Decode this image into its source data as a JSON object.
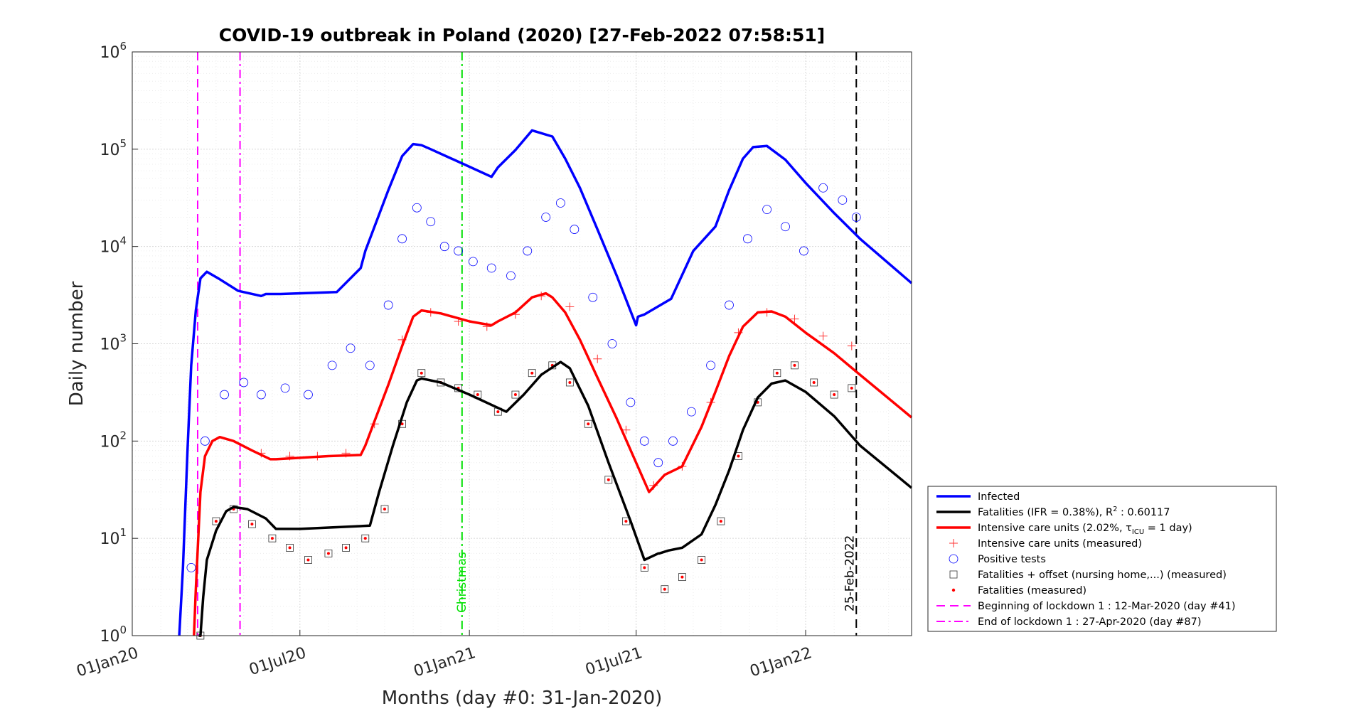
{
  "chart_data": {
    "type": "line",
    "title": "COVID-19 outbreak in Poland (2020) [27-Feb-2022 07:58:51]",
    "xlabel": "Months (day #0: 31-Jan-2020)",
    "ylabel": "Daily number",
    "y_scale": "log",
    "ylim": [
      1,
      1000000
    ],
    "xlim": [
      "2020-01-01",
      "2022-04-26"
    ],
    "grid": true,
    "legend_position": "right",
    "x_ticks": [
      "01Jan20",
      "01Jul20",
      "01Jan21",
      "01Jul21",
      "01Jan22"
    ],
    "y_ticks": [
      {
        "base": "10",
        "exp": "0"
      },
      {
        "base": "10",
        "exp": "1"
      },
      {
        "base": "10",
        "exp": "2"
      },
      {
        "base": "10",
        "exp": "3"
      },
      {
        "base": "10",
        "exp": "4"
      },
      {
        "base": "10",
        "exp": "5"
      },
      {
        "base": "10",
        "exp": "6"
      }
    ],
    "vlines": [
      {
        "x": "2020-03-12",
        "color": "#ff00ff",
        "dash": "12,7",
        "label": ""
      },
      {
        "x": "2020-04-27",
        "color": "#ff00ff",
        "dash": "12,5,3,5",
        "label": ""
      },
      {
        "x": "2020-12-24",
        "color": "#00e000",
        "dash": "12,5,3,5",
        "label": "Christmas"
      },
      {
        "x": "2022-02-25",
        "color": "#000000",
        "dash": "12,7",
        "label": "25-Feb-2022"
      }
    ],
    "series": [
      {
        "name": "Infected",
        "kind": "line",
        "color": "#0000ff",
        "width": 3.5,
        "x": [
          "2020-02-21",
          "2020-02-25",
          "2020-03-01",
          "2020-03-05",
          "2020-03-10",
          "2020-03-15",
          "2020-03-22",
          "2020-04-05",
          "2020-04-25",
          "2020-05-20",
          "2020-05-25",
          "2020-06-10",
          "2020-08-10",
          "2020-09-05",
          "2020-09-10",
          "2020-09-20",
          "2020-10-05",
          "2020-10-20",
          "2020-11-01",
          "2020-11-10",
          "2020-11-20",
          "2020-12-10",
          "2021-01-01",
          "2021-01-25",
          "2021-02-01",
          "2021-02-20",
          "2021-03-10",
          "2021-04-01",
          "2021-04-15",
          "2021-05-01",
          "2021-05-20",
          "2021-06-10",
          "2021-07-01",
          "2021-07-03",
          "2021-07-10",
          "2021-08-08",
          "2021-09-01",
          "2021-09-25",
          "2021-10-10",
          "2021-10-25",
          "2021-11-05",
          "2021-11-20",
          "2021-12-10",
          "2022-01-01",
          "2022-02-01",
          "2022-03-01",
          "2022-04-26"
        ],
        "y": [
          1,
          5,
          80,
          600,
          2200,
          4700,
          5500,
          4600,
          3500,
          3100,
          3250,
          3250,
          3400,
          6000,
          9000,
          16000,
          38000,
          85000,
          113000,
          110000,
          100000,
          82000,
          66000,
          52000,
          65000,
          98000,
          156000,
          135000,
          80000,
          40000,
          15000,
          5000,
          1550,
          1900,
          2000,
          2900,
          9000,
          16000,
          38000,
          80000,
          105000,
          108000,
          78000,
          45000,
          22000,
          12000,
          4200
        ]
      },
      {
        "name": "Intensive care units (2.02%, τICU = 1 day)",
        "kind": "line",
        "color": "#ff0000",
        "width": 3.5,
        "x": [
          "2020-03-08",
          "2020-03-10",
          "2020-03-15",
          "2020-03-20",
          "2020-03-28",
          "2020-04-05",
          "2020-04-20",
          "2020-05-10",
          "2020-05-30",
          "2020-06-05",
          "2020-08-01",
          "2020-09-05",
          "2020-09-10",
          "2020-09-20",
          "2020-10-05",
          "2020-10-20",
          "2020-11-01",
          "2020-11-10",
          "2020-12-01",
          "2021-01-01",
          "2021-01-25",
          "2021-02-01",
          "2021-02-20",
          "2021-03-10",
          "2021-03-25",
          "2021-04-01",
          "2021-04-15",
          "2021-05-01",
          "2021-05-20",
          "2021-06-10",
          "2021-07-01",
          "2021-07-15",
          "2021-08-01",
          "2021-08-20",
          "2021-09-10",
          "2021-09-25",
          "2021-10-10",
          "2021-10-25",
          "2021-11-10",
          "2021-11-25",
          "2021-12-10",
          "2022-01-01",
          "2022-02-01",
          "2022-03-01",
          "2022-04-26"
        ],
        "y": [
          1,
          3,
          30,
          70,
          100,
          110,
          100,
          80,
          65,
          65,
          70,
          72,
          90,
          160,
          380,
          950,
          1900,
          2200,
          2050,
          1700,
          1550,
          1700,
          2100,
          3000,
          3300,
          3000,
          2100,
          1100,
          450,
          170,
          60,
          30,
          45,
          55,
          140,
          320,
          750,
          1500,
          2100,
          2150,
          1900,
          1300,
          800,
          480,
          175
        ]
      },
      {
        "name": "Fatalities (IFR = 0.38%), R² : 0.60117",
        "kind": "line",
        "color": "#000000",
        "width": 3.5,
        "x": [
          "2020-03-13",
          "2020-03-15",
          "2020-03-18",
          "2020-03-22",
          "2020-04-01",
          "2020-04-12",
          "2020-04-20",
          "2020-05-05",
          "2020-05-25",
          "2020-06-05",
          "2020-07-01",
          "2020-09-15",
          "2020-09-25",
          "2020-10-10",
          "2020-10-25",
          "2020-11-05",
          "2020-11-10",
          "2020-12-01",
          "2021-01-01",
          "2021-02-10",
          "2021-03-01",
          "2021-03-20",
          "2021-04-10",
          "2021-04-20",
          "2021-05-10",
          "2021-06-01",
          "2021-06-25",
          "2021-07-10",
          "2021-07-25",
          "2021-07-26",
          "2021-08-05",
          "2021-08-20",
          "2021-09-10",
          "2021-09-25",
          "2021-10-10",
          "2021-10-25",
          "2021-11-10",
          "2021-11-25",
          "2021-12-10",
          "2022-01-01",
          "2022-02-01",
          "2022-03-01",
          "2022-04-26"
        ],
        "y": [
          1,
          1,
          2.5,
          6,
          12,
          19,
          21,
          20,
          16,
          12.5,
          12.5,
          13.5,
          30,
          90,
          250,
          420,
          440,
          400,
          300,
          200,
          300,
          480,
          650,
          560,
          230,
          60,
          15,
          6,
          7,
          7,
          7.5,
          8,
          11,
          22,
          50,
          130,
          280,
          390,
          420,
          320,
          180,
          90,
          33
        ]
      },
      {
        "name": "Intensive care units (measured)",
        "kind": "plus",
        "color": "#ff3333",
        "x": [
          "2020-05-20",
          "2020-06-20",
          "2020-07-20",
          "2020-08-20",
          "2020-09-20",
          "2020-10-20",
          "2020-11-20",
          "2020-12-20",
          "2021-01-20",
          "2021-02-20",
          "2021-03-20",
          "2021-04-20",
          "2021-05-20",
          "2021-06-20",
          "2021-07-20",
          "2021-08-20",
          "2021-09-20",
          "2021-10-20",
          "2021-11-20",
          "2021-12-20",
          "2022-01-20",
          "2022-02-20"
        ],
        "y": [
          75,
          70,
          70,
          75,
          150,
          1100,
          2100,
          1700,
          1500,
          2000,
          3100,
          2400,
          700,
          130,
          35,
          55,
          250,
          1300,
          2100,
          1800,
          1200,
          950
        ]
      },
      {
        "name": "Positive tests",
        "kind": "circle",
        "color": "#0000ff",
        "x": [
          "2020-03-05",
          "2020-03-20",
          "2020-04-10",
          "2020-05-01",
          "2020-05-20",
          "2020-06-15",
          "2020-07-10",
          "2020-08-05",
          "2020-08-25",
          "2020-09-15",
          "2020-10-05",
          "2020-10-20",
          "2020-11-05",
          "2020-11-20",
          "2020-12-05",
          "2020-12-20",
          "2021-01-05",
          "2021-01-25",
          "2021-02-15",
          "2021-03-05",
          "2021-03-25",
          "2021-04-10",
          "2021-04-25",
          "2021-05-15",
          "2021-06-05",
          "2021-06-25",
          "2021-07-10",
          "2021-07-25",
          "2021-08-10",
          "2021-08-30",
          "2021-09-20",
          "2021-10-10",
          "2021-10-30",
          "2021-11-20",
          "2021-12-10",
          "2021-12-30",
          "2022-01-20",
          "2022-02-10",
          "2022-02-25"
        ],
        "y": [
          5,
          100,
          300,
          400,
          300,
          350,
          300,
          600,
          900,
          600,
          2500,
          12000,
          25000,
          18000,
          10000,
          9000,
          7000,
          6000,
          5000,
          9000,
          20000,
          28000,
          15000,
          3000,
          1000,
          250,
          100,
          60,
          100,
          200,
          600,
          2500,
          12000,
          24000,
          16000,
          9000,
          40000,
          30000,
          20000
        ]
      },
      {
        "name": "Fatalities + offset (nursing home,...) (measured)",
        "kind": "square",
        "color": "#000000",
        "x": [
          "2020-03-15",
          "2020-04-01",
          "2020-04-20",
          "2020-05-10",
          "2020-06-01",
          "2020-06-20",
          "2020-07-10",
          "2020-08-01",
          "2020-08-20",
          "2020-09-10",
          "2020-10-01",
          "2020-10-20",
          "2020-11-10",
          "2020-12-01",
          "2020-12-20",
          "2021-01-10",
          "2021-02-01",
          "2021-02-20",
          "2021-03-10",
          "2021-04-01",
          "2021-04-20",
          "2021-05-10",
          "2021-06-01",
          "2021-06-20",
          "2021-07-10",
          "2021-08-01",
          "2021-08-20",
          "2021-09-10",
          "2021-10-01",
          "2021-10-20",
          "2021-11-10",
          "2021-12-01",
          "2021-12-20",
          "2022-01-10",
          "2022-02-01",
          "2022-02-20"
        ],
        "y": [
          1,
          15,
          20,
          14,
          10,
          8,
          6,
          7,
          8,
          10,
          20,
          150,
          500,
          400,
          350,
          300,
          200,
          300,
          500,
          600,
          400,
          150,
          40,
          15,
          5,
          3,
          4,
          6,
          15,
          70,
          250,
          500,
          600,
          400,
          300,
          350
        ]
      },
      {
        "name": "Fatalities (measured)",
        "kind": "dot",
        "color": "#ff0000",
        "x": [
          "2020-03-15",
          "2020-04-01",
          "2020-04-20",
          "2020-05-10",
          "2020-06-01",
          "2020-06-20",
          "2020-07-10",
          "2020-08-01",
          "2020-08-20",
          "2020-09-10",
          "2020-10-01",
          "2020-10-20",
          "2020-11-10",
          "2020-12-01",
          "2020-12-20",
          "2021-01-10",
          "2021-02-01",
          "2021-02-20",
          "2021-03-10",
          "2021-04-01",
          "2021-04-20",
          "2021-05-10",
          "2021-06-01",
          "2021-06-20",
          "2021-07-10",
          "2021-08-01",
          "2021-08-20",
          "2021-09-10",
          "2021-10-01",
          "2021-10-20",
          "2021-11-10",
          "2021-12-01",
          "2021-12-20",
          "2022-01-10",
          "2022-02-01",
          "2022-02-20"
        ],
        "y": [
          1,
          15,
          20,
          14,
          10,
          8,
          6,
          7,
          8,
          10,
          20,
          150,
          500,
          400,
          350,
          300,
          200,
          300,
          500,
          600,
          400,
          150,
          40,
          15,
          5,
          3,
          4,
          6,
          15,
          70,
          250,
          500,
          600,
          400,
          300,
          350
        ]
      }
    ],
    "legend": [
      {
        "kind": "line",
        "color": "#0000ff",
        "text": "Infected",
        "sup": "",
        "sub": "",
        "tail": ""
      },
      {
        "kind": "line",
        "color": "#000000",
        "text": "Fatalities (IFR = 0.38%), R",
        "sup": "2",
        "sub": "",
        "tail": " : 0.60117"
      },
      {
        "kind": "line",
        "color": "#ff0000",
        "text": "Intensive care units (2.02%, τ",
        "sup": "",
        "sub": "ICU",
        "tail": " = 1 day)"
      },
      {
        "kind": "plus",
        "color": "#ff3333",
        "text": "Intensive care units (measured)",
        "sup": "",
        "sub": "",
        "tail": ""
      },
      {
        "kind": "circle",
        "color": "#0000ff",
        "text": "Positive tests",
        "sup": "",
        "sub": "",
        "tail": ""
      },
      {
        "kind": "square",
        "color": "#000000",
        "text": "Fatalities + offset (nursing home,...) (measured)",
        "sup": "",
        "sub": "",
        "tail": ""
      },
      {
        "kind": "dot",
        "color": "#ff0000",
        "text": "Fatalities (measured)",
        "sup": "",
        "sub": "",
        "tail": ""
      },
      {
        "kind": "dash",
        "color": "#ff00ff",
        "text": "Beginning of lockdown 1 : 12-Mar-2020 (day #41)",
        "sup": "",
        "sub": "",
        "tail": ""
      },
      {
        "kind": "dashdot",
        "color": "#ff00ff",
        "text": "End of lockdown 1 : 27-Apr-2020 (day #87)",
        "sup": "",
        "sub": "",
        "tail": ""
      }
    ]
  }
}
